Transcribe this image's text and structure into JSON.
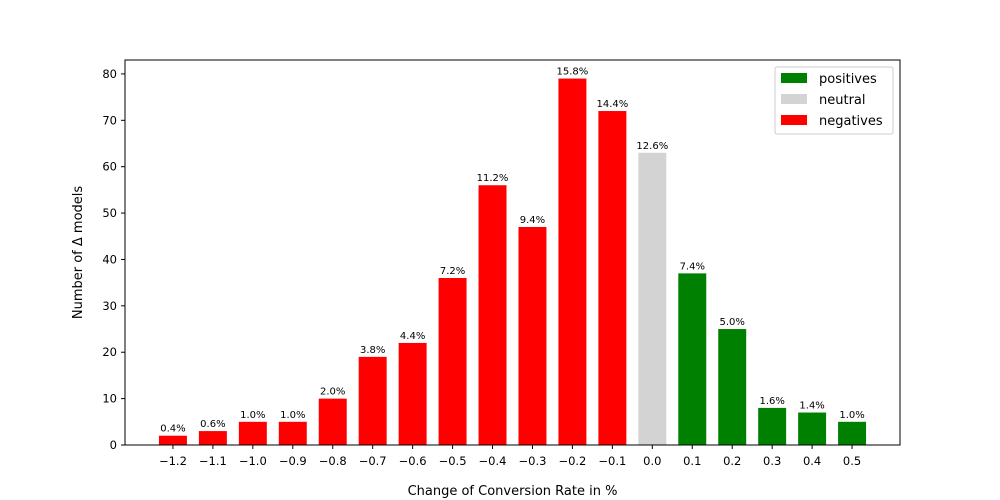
{
  "chart_data": {
    "type": "bar",
    "xlabel": "Change of Conversion Rate in %",
    "ylabel": "Number of Δ models",
    "ylim": [
      0,
      83
    ],
    "yticks": [
      0,
      10,
      20,
      30,
      40,
      50,
      60,
      70,
      80
    ],
    "grid": false,
    "legend_position": "top-right",
    "legend": [
      {
        "name": "positives",
        "color": "#008000"
      },
      {
        "name": "neutral",
        "color": "#d3d3d3"
      },
      {
        "name": "negatives",
        "color": "#ff0000"
      }
    ],
    "bars": [
      {
        "x": "−1.2",
        "value": 2,
        "label": "0.4%",
        "group": "negatives"
      },
      {
        "x": "−1.1",
        "value": 3,
        "label": "0.6%",
        "group": "negatives"
      },
      {
        "x": "−1.0",
        "value": 5,
        "label": "1.0%",
        "group": "negatives"
      },
      {
        "x": "−0.9",
        "value": 5,
        "label": "1.0%",
        "group": "negatives"
      },
      {
        "x": "−0.8",
        "value": 10,
        "label": "2.0%",
        "group": "negatives"
      },
      {
        "x": "−0.7",
        "value": 19,
        "label": "3.8%",
        "group": "negatives"
      },
      {
        "x": "−0.6",
        "value": 22,
        "label": "4.4%",
        "group": "negatives"
      },
      {
        "x": "−0.5",
        "value": 36,
        "label": "7.2%",
        "group": "negatives"
      },
      {
        "x": "−0.4",
        "value": 56,
        "label": "11.2%",
        "group": "negatives"
      },
      {
        "x": "−0.3",
        "value": 47,
        "label": "9.4%",
        "group": "negatives"
      },
      {
        "x": "−0.2",
        "value": 79,
        "label": "15.8%",
        "group": "negatives"
      },
      {
        "x": "−0.1",
        "value": 72,
        "label": "14.4%",
        "group": "negatives"
      },
      {
        "x": "0.0",
        "value": 63,
        "label": "12.6%",
        "group": "neutral"
      },
      {
        "x": "0.1",
        "value": 37,
        "label": "7.4%",
        "group": "positives"
      },
      {
        "x": "0.2",
        "value": 25,
        "label": "5.0%",
        "group": "positives"
      },
      {
        "x": "0.3",
        "value": 8,
        "label": "1.6%",
        "group": "positives"
      },
      {
        "x": "0.4",
        "value": 7,
        "label": "1.4%",
        "group": "positives"
      },
      {
        "x": "0.5",
        "value": 5,
        "label": "1.0%",
        "group": "positives"
      }
    ]
  }
}
